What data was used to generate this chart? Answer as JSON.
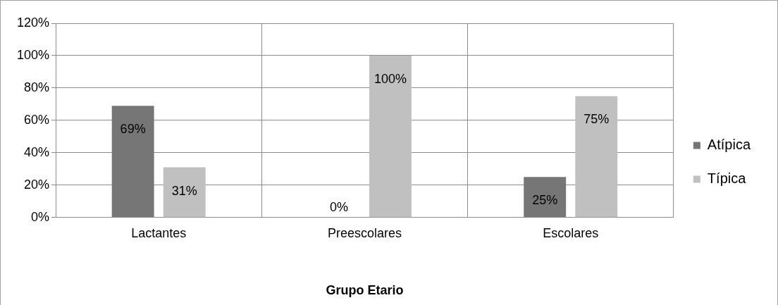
{
  "chart_data": {
    "type": "bar",
    "xlabel": "Grupo Etario",
    "categories": [
      "Lactantes",
      "Preescolares",
      "Escolares"
    ],
    "series": [
      {
        "name": "Atípica",
        "color": "#767676",
        "values": [
          69,
          0,
          25
        ]
      },
      {
        "name": "Típica",
        "color": "#c0c0c0",
        "values": [
          31,
          100,
          75
        ]
      }
    ],
    "ylim": [
      0,
      120
    ],
    "yticks": [
      {
        "value": 0,
        "label": "0%"
      },
      {
        "value": 20,
        "label": "20%"
      },
      {
        "value": 40,
        "label": "40%"
      },
      {
        "value": 60,
        "label": "60%"
      },
      {
        "value": 80,
        "label": "80%"
      },
      {
        "value": 100,
        "label": "100%"
      },
      {
        "value": 120,
        "label": "120%"
      }
    ],
    "grid": true,
    "legend": "right",
    "value_labels": [
      [
        "69%",
        "0%",
        "25%"
      ],
      [
        "31%",
        "100%",
        "75%"
      ]
    ]
  }
}
